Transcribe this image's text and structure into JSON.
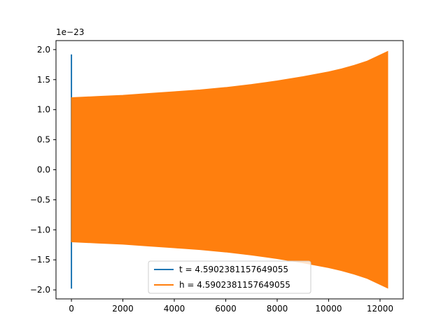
{
  "chart_data": {
    "type": "line",
    "title": "",
    "xlabel": "",
    "ylabel": "",
    "offset_text": "1e−23",
    "xlim": [
      -600,
      12900
    ],
    "ylim": [
      -2.15,
      2.15
    ],
    "xticks": [
      0,
      2000,
      4000,
      6000,
      8000,
      10000,
      12000
    ],
    "xtick_labels": [
      "0",
      "2000",
      "4000",
      "6000",
      "8000",
      "10000",
      "12000"
    ],
    "yticks": [
      2.0,
      1.5,
      1.0,
      0.5,
      0.0,
      -0.5,
      -1.0,
      -1.5,
      -2.0
    ],
    "ytick_labels": [
      "2.0",
      "1.5",
      "1.0",
      "0.5",
      "0.0",
      "−0.5",
      "−1.0",
      "−1.5",
      "−2.0"
    ],
    "grid": false,
    "legend_position": "lower-center",
    "series": [
      {
        "name": "t = 4.5902381157649055",
        "color": "#1f77b4",
        "note_values": "vertical spike at x=0",
        "x": [
          0,
          0
        ],
        "y": [
          1.92,
          -1.98
        ]
      },
      {
        "name": "h = 4.5902381157649055",
        "color": "#ff7f0e",
        "x": [
          0,
          1000,
          2000,
          3000,
          4000,
          5000,
          6000,
          7000,
          8000,
          9000,
          10000,
          10500,
          11000,
          11500,
          12000,
          12300
        ],
        "upper": [
          1.2,
          1.22,
          1.24,
          1.27,
          1.3,
          1.33,
          1.37,
          1.42,
          1.48,
          1.55,
          1.63,
          1.68,
          1.74,
          1.81,
          1.91,
          1.97
        ],
        "lower": [
          -1.2,
          -1.22,
          -1.24,
          -1.27,
          -1.3,
          -1.33,
          -1.37,
          -1.42,
          -1.48,
          -1.55,
          -1.63,
          -1.68,
          -1.74,
          -1.81,
          -1.91,
          -1.97
        ]
      }
    ]
  }
}
